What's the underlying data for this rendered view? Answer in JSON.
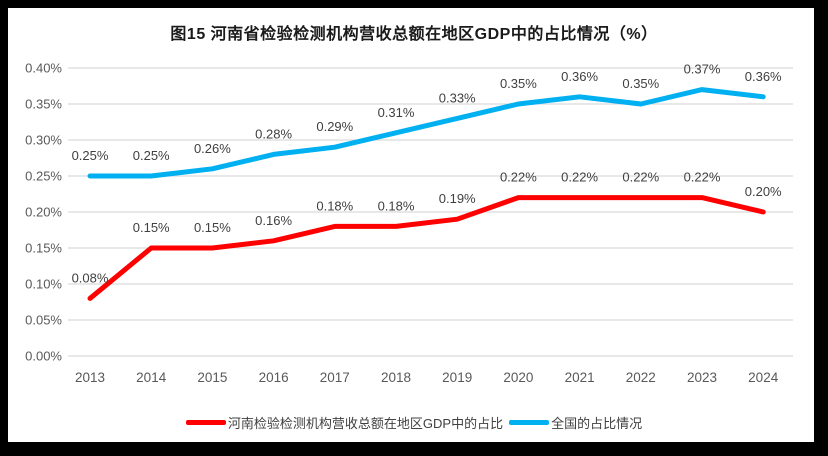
{
  "chart_data": {
    "type": "line",
    "title": "图15  河南省检验检测机构营收总额在地区GDP中的占比情况（%）",
    "categories": [
      "2013",
      "2014",
      "2015",
      "2016",
      "2017",
      "2018",
      "2019",
      "2020",
      "2021",
      "2022",
      "2023",
      "2024"
    ],
    "series": [
      {
        "name": "河南检验检测机构营收总额在地区GDP中的占比",
        "color": "#FF0000",
        "values": [
          0.08,
          0.15,
          0.15,
          0.16,
          0.18,
          0.18,
          0.19,
          0.22,
          0.22,
          0.22,
          0.22,
          0.2
        ],
        "labels": [
          "0.08%",
          "0.15%",
          "0.15%",
          "0.16%",
          "0.18%",
          "0.18%",
          "0.19%",
          "0.22%",
          "0.22%",
          "0.22%",
          "0.22%",
          "0.20%"
        ]
      },
      {
        "name": "全国的占比情况",
        "color": "#00B0F0",
        "values": [
          0.25,
          0.25,
          0.26,
          0.28,
          0.29,
          0.31,
          0.33,
          0.35,
          0.36,
          0.35,
          0.37,
          0.36
        ],
        "labels": [
          "0.25%",
          "0.25%",
          "0.26%",
          "0.28%",
          "0.29%",
          "0.31%",
          "0.33%",
          "0.35%",
          "0.36%",
          "0.35%",
          "0.37%",
          "0.36%"
        ]
      }
    ],
    "xlabel": "",
    "ylabel": "",
    "ylim": [
      0,
      0.4
    ],
    "ytick_step": 0.05,
    "yticks": [
      "0.00%",
      "0.05%",
      "0.10%",
      "0.15%",
      "0.20%",
      "0.25%",
      "0.30%",
      "0.35%",
      "0.40%"
    ],
    "grid": true,
    "legend_position": "bottom",
    "colors": {
      "gridline": "#D9D9D9",
      "axis_text": "#595959",
      "data_label_text": "#404040",
      "background": "#FFFFFF",
      "frame": "#000000"
    }
  }
}
